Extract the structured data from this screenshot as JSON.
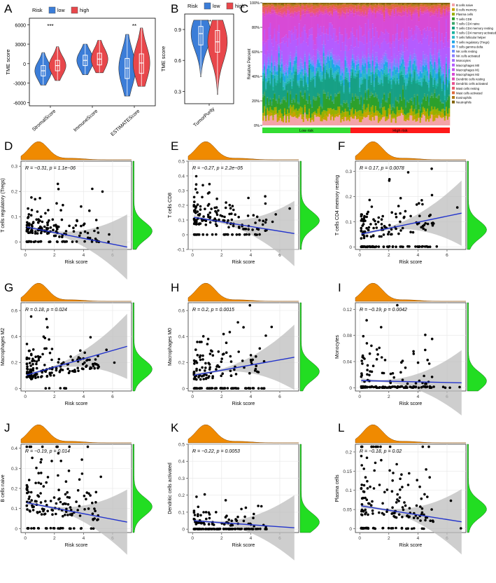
{
  "figure": {
    "panels": [
      "A",
      "B",
      "C",
      "D",
      "E",
      "F",
      "G",
      "H",
      "I",
      "J",
      "K",
      "L"
    ],
    "colors": {
      "low": "#3b7dd8",
      "high": "#e8474b",
      "density": "#f08a00",
      "density_side": "#22dd22",
      "fit": "#2233cc",
      "ci": "#bdbdbd",
      "grid": "#e6e6e6"
    }
  },
  "chart_data": [
    {
      "panel": "A",
      "type": "violin",
      "legend_title": "Risk",
      "legend": [
        "low",
        "high"
      ],
      "categories": [
        "StromalScore",
        "ImmuneScore",
        "ESTIMATEScore"
      ],
      "ylabel": "TME score",
      "yticks": [
        -6000,
        -3000,
        0,
        3000,
        6000
      ],
      "ylim": [
        -6500,
        7000
      ],
      "significance": [
        "***",
        "",
        "**"
      ],
      "series": [
        {
          "name": "low",
          "median": [
            -1100,
            500,
            -700
          ],
          "q1": [
            -1900,
            -300,
            -2300
          ],
          "q3": [
            -300,
            1300,
            800
          ],
          "min": [
            -3300,
            -1700,
            -5000
          ],
          "max": [
            1700,
            3000,
            4500
          ]
        },
        {
          "name": "high",
          "median": [
            -300,
            700,
            100
          ],
          "q1": [
            -1100,
            -200,
            -1500
          ],
          "q3": [
            500,
            1600,
            1500
          ],
          "min": [
            -2600,
            -1400,
            -3500
          ],
          "max": [
            2600,
            3600,
            5500
          ]
        }
      ]
    },
    {
      "panel": "B",
      "type": "violin",
      "legend_title": "Risk",
      "legend": [
        "low",
        "high"
      ],
      "categories": [
        "TumorPurity"
      ],
      "ylabel": "TME score",
      "yticks": [
        0.3,
        0.6,
        0.9
      ],
      "ylim": [
        0.18,
        1.05
      ],
      "significance": [
        "**"
      ],
      "series": [
        {
          "name": "low",
          "median": [
            0.86
          ],
          "q1": [
            0.75
          ],
          "q3": [
            0.93
          ],
          "min": [
            0.44
          ],
          "max": [
            0.99
          ]
        },
        {
          "name": "high",
          "median": [
            0.78
          ],
          "q1": [
            0.68
          ],
          "q3": [
            0.89
          ],
          "min": [
            0.27
          ],
          "max": [
            0.99
          ]
        }
      ]
    },
    {
      "panel": "C",
      "type": "stacked-bar",
      "ylabel": "Relative Percent",
      "yticks": [
        "0%",
        "20%",
        "40%",
        "60%",
        "80%",
        "100%"
      ],
      "groups": [
        "Low risk",
        "High risk"
      ],
      "cell_types": [
        "B cells naive",
        "B cells memory",
        "Plasma cells",
        "T cells CD8",
        "T cells CD4 naive",
        "T cells CD4 memory resting",
        "T cells CD4 memory activated",
        "T cells follicular helper",
        "T cells regulatory (Tregs)",
        "T cells gamma delta",
        "NK cells resting",
        "NK cells activated",
        "Monocytes",
        "Macrophages M0",
        "Macrophages M1",
        "Macrophages M2",
        "Dendritic cells resting",
        "Dendritic cells activated",
        "Mast cells resting",
        "Mast cells activated",
        "Eosinophils",
        "Neutrophils"
      ],
      "cell_colors": [
        "#f4a3a8",
        "#c6a300",
        "#98b000",
        "#2ca02c",
        "#3aa66a",
        "#16a085",
        "#19b3a0",
        "#2fb8c8",
        "#1ea7e6",
        "#4da3ff",
        "#6f8cff",
        "#8a7dff",
        "#a56bff",
        "#b45cff",
        "#c553f0",
        "#d84ad6",
        "#e14ab4",
        "#e8508f",
        "#ea5a6b",
        "#dd6a3b",
        "#b07a1a",
        "#806000"
      ],
      "mean_fractions": [
        0.06,
        0.03,
        0.04,
        0.09,
        0.02,
        0.14,
        0.02,
        0.05,
        0.04,
        0.01,
        0.03,
        0.02,
        0.03,
        0.13,
        0.08,
        0.15,
        0.02,
        0.01,
        0.03,
        0.02,
        0.01,
        0.01
      ]
    },
    {
      "panel": "D",
      "type": "scatter",
      "ylabel": "T cells regulatory (Tregs)",
      "xlabel": "Risk score",
      "annotation": "R = −0.31, p = 1.1e−06",
      "xticks": [
        0,
        2,
        4,
        6
      ],
      "yticks": [
        0.0,
        0.1,
        0.2,
        0.3
      ],
      "xlim": [
        -0.3,
        7.3
      ],
      "ylim": [
        -0.03,
        0.32
      ],
      "fit": {
        "intercept": 0.06,
        "slope": -0.0115
      },
      "seed": 11,
      "spread": 0.08,
      "rate": 22,
      "zero_frac": 0.25
    },
    {
      "panel": "E",
      "type": "scatter",
      "ylabel": "T cells CD8",
      "xlabel": "Risk score",
      "annotation": "R = −0.27, p = 2.2e−05",
      "xticks": [
        0,
        2,
        4,
        6
      ],
      "yticks": [
        -0.1,
        0.0,
        0.1,
        0.2,
        0.3,
        0.4,
        0.5
      ],
      "xlim": [
        -0.3,
        7.3
      ],
      "ylim": [
        -0.1,
        0.5
      ],
      "fit": {
        "intercept": 0.12,
        "slope": -0.016
      },
      "seed": 23,
      "spread": 0.12,
      "rate": 10,
      "zero_frac": 0.12
    },
    {
      "panel": "F",
      "type": "scatter",
      "ylabel": "T cells CD4 memory resting",
      "xlabel": "Risk score",
      "annotation": "R = 0.17, p = 0.0078",
      "xticks": [
        0,
        2,
        4,
        6
      ],
      "yticks": [
        0.0,
        0.1,
        0.2,
        0.3
      ],
      "xlim": [
        -0.3,
        7.3
      ],
      "ylim": [
        -0.01,
        0.34
      ],
      "fit": {
        "intercept": 0.05,
        "slope": 0.012
      },
      "seed": 37,
      "spread": 0.1,
      "rate": 16,
      "zero_frac": 0.35
    },
    {
      "panel": "G",
      "type": "scatter",
      "ylabel": "Macrophages M2",
      "xlabel": "Risk score",
      "annotation": "R = 0.18, p = 0.024",
      "xticks": [
        0,
        2,
        4,
        6
      ],
      "yticks": [
        0.0,
        0.2,
        0.4,
        0.6
      ],
      "xlim": [
        -0.3,
        7.3
      ],
      "ylim": [
        -0.02,
        0.66
      ],
      "fit": {
        "intercept": 0.1,
        "slope": 0.032
      },
      "seed": 41,
      "spread": 0.12,
      "rate": 12,
      "zero_frac": 0.05
    },
    {
      "panel": "H",
      "type": "scatter",
      "ylabel": "Macrophages M0",
      "xlabel": "Risk score",
      "annotation": "R = 0.2, p = 0.0015",
      "xticks": [
        0,
        2,
        4,
        6
      ],
      "yticks": [
        0.0,
        0.2,
        0.4,
        0.6
      ],
      "xlim": [
        -0.3,
        7.3
      ],
      "ylim": [
        -0.02,
        0.66
      ],
      "fit": {
        "intercept": 0.1,
        "slope": 0.02
      },
      "seed": 53,
      "spread": 0.17,
      "rate": 9,
      "zero_frac": 0.3
    },
    {
      "panel": "I",
      "type": "scatter",
      "ylabel": "Monocytes",
      "xlabel": "Risk score",
      "annotation": "R = −0.19, p = 0.0042",
      "xticks": [
        0,
        2,
        4,
        6
      ],
      "yticks": [
        0.0,
        0.04,
        0.08,
        0.12
      ],
      "xlim": [
        -0.3,
        7.3
      ],
      "ylim": [
        -0.005,
        0.13
      ],
      "fit": {
        "intercept": 0.011,
        "slope": -0.0005
      },
      "seed": 67,
      "spread": 0.03,
      "rate": 30,
      "zero_frac": 0.55
    },
    {
      "panel": "J",
      "type": "scatter",
      "ylabel": "B cells naive",
      "xlabel": "Risk score",
      "annotation": "R = −0.19, p = 0.014",
      "xticks": [
        0,
        2,
        4,
        6
      ],
      "yticks": [
        0.0,
        0.1,
        0.2,
        0.3,
        0.4
      ],
      "xlim": [
        -0.3,
        7.3
      ],
      "ylim": [
        -0.02,
        0.42
      ],
      "fit": {
        "intercept": 0.13,
        "slope": -0.014
      },
      "seed": 71,
      "spread": 0.12,
      "rate": 10,
      "zero_frac": 0.12
    },
    {
      "panel": "K",
      "type": "scatter",
      "ylabel": "Dendritic cells activated",
      "xlabel": "Risk score",
      "annotation": "R = −0.22, p = 0.0053",
      "xticks": [
        0,
        2,
        4,
        6
      ],
      "yticks": [
        0.0,
        0.1,
        0.2,
        0.3,
        0.4,
        0.5
      ],
      "xlim": [
        -0.3,
        7.3
      ],
      "ylim": [
        -0.02,
        0.5
      ],
      "fit": {
        "intercept": 0.05,
        "slope": -0.006
      },
      "seed": 83,
      "spread": 0.1,
      "rate": 25,
      "zero_frac": 0.6
    },
    {
      "panel": "L",
      "type": "scatter",
      "ylabel": "Plasma cells",
      "xlabel": "Risk score",
      "annotation": "R = −0.18, p = 0.02",
      "xticks": [
        0,
        2,
        4,
        6
      ],
      "yticks": [
        0.0,
        0.05,
        0.1,
        0.15,
        0.2
      ],
      "xlim": [
        -0.3,
        7.3
      ],
      "ylim": [
        -0.01,
        0.22
      ],
      "fit": {
        "intercept": 0.06,
        "slope": -0.006
      },
      "seed": 97,
      "spread": 0.06,
      "rate": 15,
      "zero_frac": 0.25
    }
  ]
}
